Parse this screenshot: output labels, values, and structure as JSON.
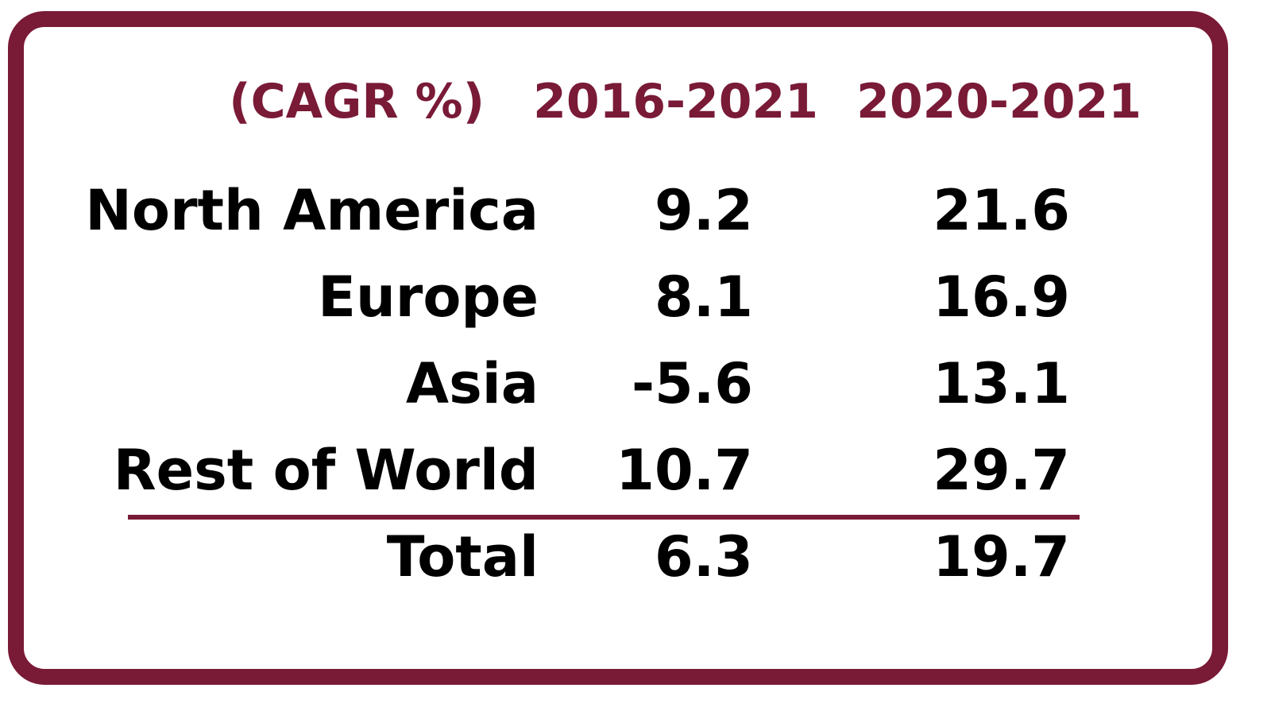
{
  "chart_data": {
    "type": "table",
    "columns": [
      "(CAGR %)",
      "2016-2021",
      "2020-2021"
    ],
    "rows": [
      {
        "label": "North America",
        "values": [
          9.2,
          21.6
        ],
        "display": [
          "9.2",
          "21.6"
        ]
      },
      {
        "label": "Europe",
        "values": [
          8.1,
          16.9
        ],
        "display": [
          "8.1",
          "16.9"
        ]
      },
      {
        "label": "Asia",
        "values": [
          -5.6,
          13.1
        ],
        "display": [
          "-5.6",
          "13.1"
        ]
      },
      {
        "label": "Rest of World",
        "values": [
          10.7,
          29.7
        ],
        "display": [
          "10.7",
          "29.7"
        ]
      }
    ],
    "total": {
      "label": "Total",
      "values": [
        6.3,
        19.7
      ],
      "display": [
        "6.3",
        "19.7"
      ]
    },
    "colors": {
      "accent": "#791a37",
      "text": "#000000",
      "background": "#ffffff"
    }
  }
}
